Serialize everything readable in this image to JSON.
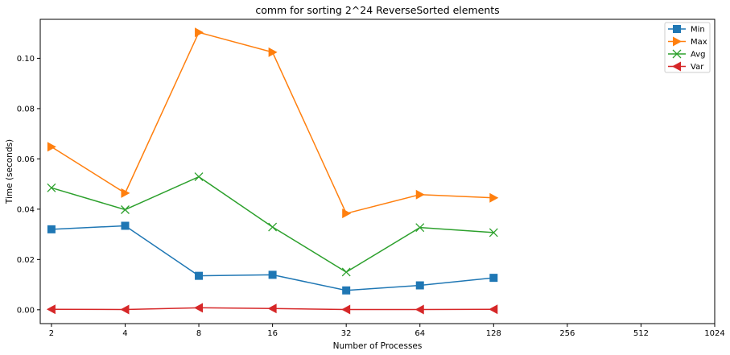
{
  "chart_data": {
    "type": "line",
    "title": "comm for sorting 2^24 ReverseSorted elements",
    "xlabel": "Number of Processes",
    "ylabel": "Time (seconds)",
    "x_scale": "log2",
    "x_ticks": [
      2,
      4,
      8,
      16,
      32,
      64,
      128,
      256,
      512,
      1024
    ],
    "xlim": [
      1.8,
      1024
    ],
    "ylim": [
      -0.0055,
      0.1155
    ],
    "y_ticks": [
      0.0,
      0.02,
      0.04,
      0.06,
      0.08,
      0.1
    ],
    "y_tick_labels": [
      "0.00",
      "0.02",
      "0.04",
      "0.06",
      "0.08",
      "0.10"
    ],
    "grid": false,
    "legend_position": "top-right",
    "series": [
      {
        "name": "Min",
        "color": "#1f77b4",
        "marker": "square",
        "x": [
          2,
          4,
          8,
          16,
          32,
          64,
          128
        ],
        "values": [
          0.032,
          0.0334,
          0.0135,
          0.0139,
          0.0077,
          0.0097,
          0.0127
        ]
      },
      {
        "name": "Max",
        "color": "#ff7f0e",
        "marker": "triangle-right",
        "x": [
          2,
          4,
          8,
          16,
          32,
          64,
          128
        ],
        "values": [
          0.0648,
          0.0464,
          0.1103,
          0.1024,
          0.0383,
          0.0458,
          0.0445
        ]
      },
      {
        "name": "Avg",
        "color": "#2ca02c",
        "marker": "x",
        "x": [
          2,
          4,
          8,
          16,
          32,
          64,
          128
        ],
        "values": [
          0.0485,
          0.0398,
          0.0529,
          0.0329,
          0.015,
          0.0327,
          0.0307
        ]
      },
      {
        "name": "Var",
        "color": "#d62728",
        "marker": "triangle-left",
        "x": [
          2,
          4,
          8,
          16,
          32,
          64,
          128
        ],
        "values": [
          0.0002,
          0.0001,
          0.0008,
          0.0005,
          0.0001,
          0.0001,
          0.0002
        ]
      }
    ]
  }
}
